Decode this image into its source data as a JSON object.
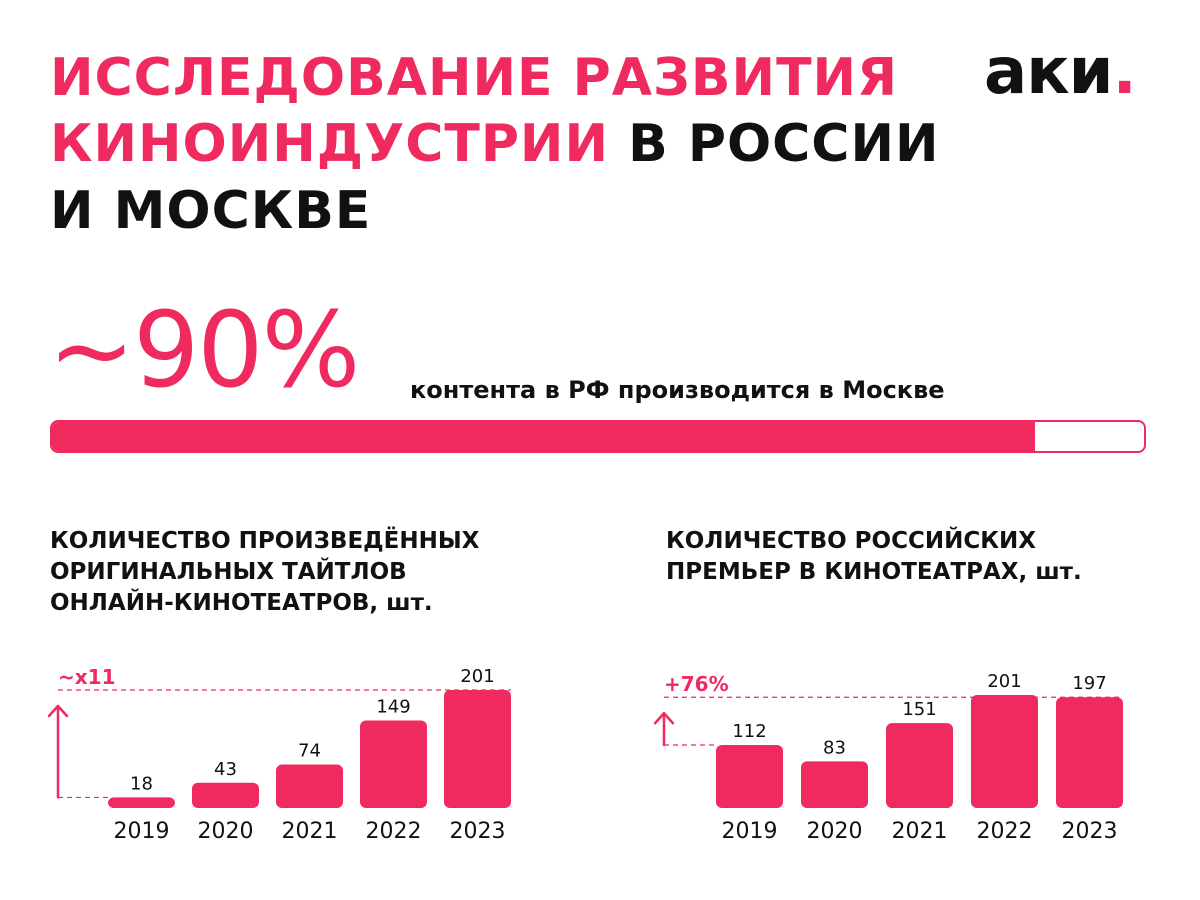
{
  "colors": {
    "accent": "#ef2a5f",
    "text": "#111111",
    "background": "#ffffff"
  },
  "header": {
    "title_line1": "ИССЛЕДОВАНИЕ РАЗВИТИЯ",
    "title_line2_pink": "КИНОИНДУСТРИИ",
    "title_line2_black": " В РОССИИ",
    "title_line3": "И МОСКВЕ",
    "logo_text": "аки",
    "logo_dot": "."
  },
  "highlight": {
    "value": "~90%",
    "caption": "контента в РФ производится в Москве",
    "progress_fraction": 0.9
  },
  "chart_data": [
    {
      "type": "bar",
      "title_lines": [
        "КОЛИЧЕСТВО ПРОИЗВЕДЁННЫХ",
        "ОРИГИНАЛЬНЫХ ТАЙТЛОВ",
        "ОНЛАЙН-КИНОТЕАТРОВ, шт."
      ],
      "categories": [
        "2019",
        "2020",
        "2021",
        "2022",
        "2023"
      ],
      "values": [
        18,
        43,
        74,
        149,
        201
      ],
      "growth_label": "~x11",
      "growth_from": "2019",
      "growth_to": "2023",
      "ylim": [
        0,
        201
      ],
      "grid": false,
      "legend": "none"
    },
    {
      "type": "bar",
      "title_lines": [
        "КОЛИЧЕСТВО РОССИЙСКИХ",
        "ПРЕМЬЕР В КИНОТЕАТРАХ, шт."
      ],
      "categories": [
        "2019",
        "2020",
        "2021",
        "2022",
        "2023"
      ],
      "values": [
        112,
        83,
        151,
        201,
        197
      ],
      "growth_label": "+76%",
      "growth_from": "2019",
      "growth_to": "2023",
      "ylim": [
        0,
        201
      ],
      "grid": false,
      "legend": "none"
    }
  ]
}
